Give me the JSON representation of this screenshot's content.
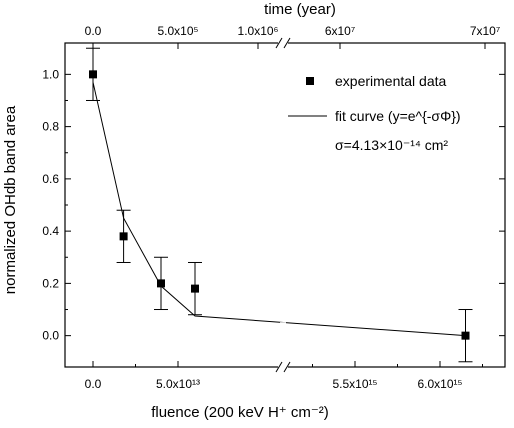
{
  "chart_data": {
    "type": "scatter",
    "title": "",
    "xlabel": "fluence (200 keV H⁺ cm⁻²)",
    "ylabel": "normalized OHdb band area",
    "top_xlabel": "time (year)",
    "ylim": [
      -0.12,
      1.12
    ],
    "y_ticks": [
      "0.0",
      "0.2",
      "0.4",
      "0.6",
      "0.8",
      "1.0"
    ],
    "y_tick_values": [
      0,
      0.2,
      0.4,
      0.6,
      0.8,
      1.0
    ],
    "x_tick_labels": [
      "0.0",
      "5.0x10¹³",
      "5.5x10¹⁵",
      "6.0x10¹⁵"
    ],
    "top_tick_labels": [
      "0.0",
      "5.0x10⁵",
      "1.0x10⁶",
      "6x10⁷",
      "7x10⁷"
    ],
    "axis_break": true,
    "series": [
      {
        "name": "experimental data",
        "marker": "square",
        "points": [
          {
            "x": "0",
            "y": 1.0,
            "err": 0.1
          },
          {
            "x": "1.8e13",
            "y": 0.38,
            "err": 0.1
          },
          {
            "x": "4.0e13",
            "y": 0.2,
            "err": 0.1
          },
          {
            "x": "6.0e13",
            "y": 0.18,
            "err": 0.1
          },
          {
            "x": "6.15e15",
            "y": 0.0,
            "err": 0.1
          }
        ]
      },
      {
        "name": "fit curve (y=e^{-σΦ})",
        "line": true,
        "points": [
          {
            "x": "0",
            "y": 0.97
          },
          {
            "x": "1.8e13",
            "y": 0.45
          },
          {
            "x": "4.0e13",
            "y": 0.19
          },
          {
            "x": "6.0e13",
            "y": 0.075
          },
          {
            "x": "6.15e15",
            "y": 0.0
          }
        ]
      }
    ],
    "annotation": "σ=4.13×10⁻¹⁴ cm²",
    "legend_position": "top-right",
    "grid": false
  }
}
